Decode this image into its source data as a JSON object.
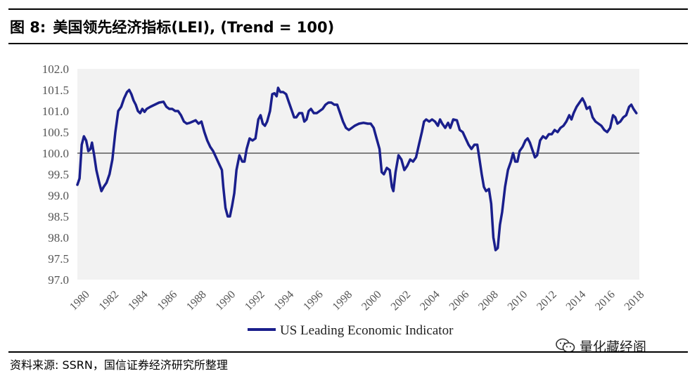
{
  "header": {
    "figure_num": "图 8:",
    "title": "美国领先经济指标(LEI), (Trend = 100)"
  },
  "footer": {
    "source": "资料来源: SSRN，国信证券经济研究所整理",
    "watermark": "量化藏经阁"
  },
  "colors": {
    "line": "#1a1f8c",
    "plot_bg": "#f2f2f2",
    "reference_line": "#808080"
  },
  "chart_data": {
    "type": "line",
    "title": "美国领先经济指标(LEI), (Trend = 100)",
    "xlabel": "",
    "ylabel": "",
    "xlim": [
      1980,
      2018.5
    ],
    "ylim": [
      97.0,
      102.0
    ],
    "y_ticks": [
      "97.0",
      "97.5",
      "98.0",
      "98.5",
      "99.0",
      "99.5",
      "100.0",
      "100.5",
      "101.0",
      "101.5",
      "102.0"
    ],
    "x_ticks": [
      "1980",
      "1982",
      "1984",
      "1986",
      "1988",
      "1990",
      "1992",
      "1994",
      "1996",
      "1998",
      "2000",
      "2002",
      "2004",
      "2006",
      "2008",
      "2010",
      "2012",
      "2014",
      "2016",
      "2018"
    ],
    "reference_line": 100.0,
    "legend": "bottom-center",
    "series": [
      {
        "name": "US Leading Economic Indicator",
        "points": [
          [
            1980.0,
            99.25
          ],
          [
            1980.15,
            99.4
          ],
          [
            1980.3,
            100.2
          ],
          [
            1980.45,
            100.4
          ],
          [
            1980.6,
            100.3
          ],
          [
            1980.75,
            100.05
          ],
          [
            1980.9,
            100.1
          ],
          [
            1981.0,
            100.25
          ],
          [
            1981.15,
            99.95
          ],
          [
            1981.3,
            99.6
          ],
          [
            1981.5,
            99.3
          ],
          [
            1981.65,
            99.1
          ],
          [
            1981.8,
            99.2
          ],
          [
            1982.0,
            99.3
          ],
          [
            1982.2,
            99.5
          ],
          [
            1982.4,
            99.85
          ],
          [
            1982.6,
            100.5
          ],
          [
            1982.8,
            101.0
          ],
          [
            1983.0,
            101.1
          ],
          [
            1983.2,
            101.3
          ],
          [
            1983.4,
            101.45
          ],
          [
            1983.55,
            101.5
          ],
          [
            1983.7,
            101.4
          ],
          [
            1983.85,
            101.25
          ],
          [
            1984.0,
            101.15
          ],
          [
            1984.15,
            101.0
          ],
          [
            1984.3,
            100.95
          ],
          [
            1984.45,
            101.05
          ],
          [
            1984.6,
            100.98
          ],
          [
            1984.75,
            101.05
          ],
          [
            1985.0,
            101.1
          ],
          [
            1985.3,
            101.15
          ],
          [
            1985.6,
            101.2
          ],
          [
            1985.9,
            101.22
          ],
          [
            1986.1,
            101.1
          ],
          [
            1986.3,
            101.05
          ],
          [
            1986.5,
            101.05
          ],
          [
            1986.7,
            101.0
          ],
          [
            1986.9,
            101.0
          ],
          [
            1987.1,
            100.9
          ],
          [
            1987.3,
            100.75
          ],
          [
            1987.5,
            100.7
          ],
          [
            1987.7,
            100.72
          ],
          [
            1987.9,
            100.75
          ],
          [
            1988.1,
            100.78
          ],
          [
            1988.3,
            100.7
          ],
          [
            1988.5,
            100.75
          ],
          [
            1988.7,
            100.5
          ],
          [
            1988.9,
            100.3
          ],
          [
            1989.1,
            100.15
          ],
          [
            1989.3,
            100.05
          ],
          [
            1989.5,
            99.9
          ],
          [
            1989.7,
            99.75
          ],
          [
            1989.9,
            99.6
          ],
          [
            1990.0,
            99.2
          ],
          [
            1990.15,
            98.7
          ],
          [
            1990.3,
            98.5
          ],
          [
            1990.45,
            98.5
          ],
          [
            1990.6,
            98.75
          ],
          [
            1990.75,
            99.05
          ],
          [
            1990.9,
            99.6
          ],
          [
            1991.1,
            99.95
          ],
          [
            1991.3,
            99.8
          ],
          [
            1991.45,
            99.8
          ],
          [
            1991.6,
            100.1
          ],
          [
            1991.8,
            100.35
          ],
          [
            1992.0,
            100.3
          ],
          [
            1992.2,
            100.35
          ],
          [
            1992.4,
            100.8
          ],
          [
            1992.55,
            100.9
          ],
          [
            1992.7,
            100.7
          ],
          [
            1992.85,
            100.65
          ],
          [
            1993.0,
            100.75
          ],
          [
            1993.2,
            101.0
          ],
          [
            1993.35,
            101.4
          ],
          [
            1993.5,
            101.42
          ],
          [
            1993.65,
            101.35
          ],
          [
            1993.75,
            101.55
          ],
          [
            1993.9,
            101.45
          ],
          [
            1994.1,
            101.45
          ],
          [
            1994.3,
            101.4
          ],
          [
            1994.5,
            101.2
          ],
          [
            1994.7,
            101.0
          ],
          [
            1994.85,
            100.85
          ],
          [
            1995.0,
            100.85
          ],
          [
            1995.2,
            100.95
          ],
          [
            1995.4,
            100.95
          ],
          [
            1995.55,
            100.75
          ],
          [
            1995.7,
            100.8
          ],
          [
            1995.85,
            101.0
          ],
          [
            1996.0,
            101.05
          ],
          [
            1996.2,
            100.95
          ],
          [
            1996.4,
            100.95
          ],
          [
            1996.6,
            101.0
          ],
          [
            1996.8,
            101.05
          ],
          [
            1997.0,
            101.15
          ],
          [
            1997.2,
            101.2
          ],
          [
            1997.4,
            101.2
          ],
          [
            1997.6,
            101.15
          ],
          [
            1997.8,
            101.15
          ],
          [
            1998.0,
            100.95
          ],
          [
            1998.2,
            100.75
          ],
          [
            1998.4,
            100.6
          ],
          [
            1998.6,
            100.55
          ],
          [
            1998.8,
            100.6
          ],
          [
            1999.0,
            100.65
          ],
          [
            1999.3,
            100.7
          ],
          [
            1999.6,
            100.72
          ],
          [
            1999.9,
            100.7
          ],
          [
            2000.1,
            100.7
          ],
          [
            2000.3,
            100.6
          ],
          [
            2000.5,
            100.35
          ],
          [
            2000.7,
            100.1
          ],
          [
            2000.85,
            99.55
          ],
          [
            2001.0,
            99.5
          ],
          [
            2001.2,
            99.65
          ],
          [
            2001.4,
            99.6
          ],
          [
            2001.55,
            99.2
          ],
          [
            2001.65,
            99.1
          ],
          [
            2001.8,
            99.55
          ],
          [
            2002.0,
            99.95
          ],
          [
            2002.2,
            99.85
          ],
          [
            2002.4,
            99.6
          ],
          [
            2002.6,
            99.7
          ],
          [
            2002.8,
            99.85
          ],
          [
            2003.0,
            99.8
          ],
          [
            2003.2,
            99.9
          ],
          [
            2003.4,
            100.2
          ],
          [
            2003.6,
            100.5
          ],
          [
            2003.75,
            100.75
          ],
          [
            2003.9,
            100.8
          ],
          [
            2004.1,
            100.75
          ],
          [
            2004.3,
            100.8
          ],
          [
            2004.5,
            100.75
          ],
          [
            2004.7,
            100.65
          ],
          [
            2004.85,
            100.8
          ],
          [
            2005.0,
            100.7
          ],
          [
            2005.2,
            100.6
          ],
          [
            2005.4,
            100.72
          ],
          [
            2005.55,
            100.6
          ],
          [
            2005.75,
            100.8
          ],
          [
            2006.0,
            100.78
          ],
          [
            2006.2,
            100.55
          ],
          [
            2006.4,
            100.5
          ],
          [
            2006.6,
            100.35
          ],
          [
            2006.8,
            100.2
          ],
          [
            2007.0,
            100.1
          ],
          [
            2007.2,
            100.2
          ],
          [
            2007.4,
            100.2
          ],
          [
            2007.55,
            99.85
          ],
          [
            2007.7,
            99.5
          ],
          [
            2007.85,
            99.2
          ],
          [
            2008.0,
            99.1
          ],
          [
            2008.2,
            99.15
          ],
          [
            2008.35,
            98.8
          ],
          [
            2008.5,
            98.0
          ],
          [
            2008.65,
            97.7
          ],
          [
            2008.8,
            97.75
          ],
          [
            2008.95,
            98.3
          ],
          [
            2009.1,
            98.6
          ],
          [
            2009.3,
            99.2
          ],
          [
            2009.5,
            99.6
          ],
          [
            2009.7,
            99.8
          ],
          [
            2009.85,
            100.0
          ],
          [
            2010.0,
            99.8
          ],
          [
            2010.15,
            99.8
          ],
          [
            2010.3,
            100.05
          ],
          [
            2010.5,
            100.15
          ],
          [
            2010.7,
            100.3
          ],
          [
            2010.85,
            100.35
          ],
          [
            2011.0,
            100.25
          ],
          [
            2011.2,
            100.05
          ],
          [
            2011.35,
            99.9
          ],
          [
            2011.5,
            99.95
          ],
          [
            2011.7,
            100.3
          ],
          [
            2011.9,
            100.4
          ],
          [
            2012.1,
            100.35
          ],
          [
            2012.3,
            100.45
          ],
          [
            2012.5,
            100.45
          ],
          [
            2012.7,
            100.55
          ],
          [
            2012.9,
            100.5
          ],
          [
            2013.1,
            100.6
          ],
          [
            2013.3,
            100.65
          ],
          [
            2013.5,
            100.75
          ],
          [
            2013.7,
            100.9
          ],
          [
            2013.85,
            100.8
          ],
          [
            2014.0,
            100.95
          ],
          [
            2014.2,
            101.1
          ],
          [
            2014.4,
            101.2
          ],
          [
            2014.6,
            101.3
          ],
          [
            2014.75,
            101.2
          ],
          [
            2014.9,
            101.05
          ],
          [
            2015.1,
            101.1
          ],
          [
            2015.3,
            100.85
          ],
          [
            2015.5,
            100.75
          ],
          [
            2015.7,
            100.7
          ],
          [
            2015.9,
            100.65
          ],
          [
            2016.1,
            100.55
          ],
          [
            2016.3,
            100.5
          ],
          [
            2016.5,
            100.6
          ],
          [
            2016.7,
            100.9
          ],
          [
            2016.85,
            100.85
          ],
          [
            2017.0,
            100.7
          ],
          [
            2017.2,
            100.75
          ],
          [
            2017.4,
            100.85
          ],
          [
            2017.6,
            100.9
          ],
          [
            2017.8,
            101.1
          ],
          [
            2017.95,
            101.15
          ],
          [
            2018.1,
            101.05
          ],
          [
            2018.3,
            100.95
          ]
        ]
      }
    ]
  }
}
